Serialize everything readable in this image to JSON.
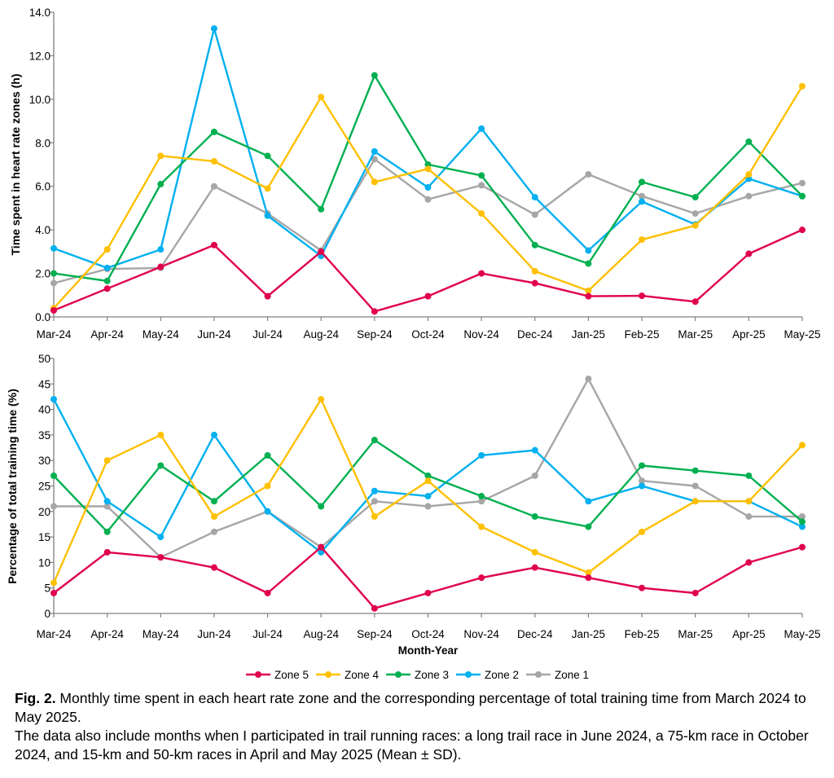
{
  "chart_data": [
    {
      "type": "line",
      "ylabel": "Time spent in heart rate zones (h)",
      "xlabel": "",
      "ylim": [
        0,
        14
      ],
      "yticks": [
        "0.0",
        "2.0",
        "4.0",
        "6.0",
        "8.0",
        "10.0",
        "12.0",
        "14.0"
      ],
      "categories": [
        "Mar-24",
        "Apr-24",
        "May-24",
        "Jun-24",
        "Jul-24",
        "Aug-24",
        "Sep-24",
        "Oct-24",
        "Nov-24",
        "Dec-24",
        "Jan-25",
        "Feb-25",
        "Mar-25",
        "Apr-25",
        "May-25"
      ],
      "series": [
        {
          "name": "Zone 1",
          "color": "#A6A6A6",
          "values": [
            1.55,
            2.2,
            2.25,
            6.0,
            4.75,
            3.05,
            7.25,
            5.4,
            6.05,
            4.7,
            6.55,
            5.55,
            4.75,
            5.55,
            6.15
          ]
        },
        {
          "name": "Zone 2",
          "color": "#00B0F0",
          "values": [
            3.15,
            2.25,
            3.1,
            13.25,
            4.65,
            2.8,
            7.6,
            5.95,
            8.65,
            5.5,
            3.05,
            5.3,
            4.25,
            6.35,
            5.55
          ]
        },
        {
          "name": "Zone 3",
          "color": "#00B050",
          "values": [
            2.0,
            1.65,
            6.1,
            8.5,
            7.4,
            4.95,
            11.1,
            7.0,
            6.5,
            3.3,
            2.45,
            6.2,
            5.5,
            8.05,
            5.55
          ]
        },
        {
          "name": "Zone 4",
          "color": "#FFC000",
          "values": [
            0.4,
            3.1,
            7.4,
            7.15,
            5.9,
            10.1,
            6.2,
            6.8,
            4.75,
            2.1,
            1.2,
            3.55,
            4.2,
            6.55,
            10.6
          ]
        },
        {
          "name": "Zone 5",
          "color": "#E0004D",
          "values": [
            0.3,
            1.3,
            2.3,
            3.3,
            0.95,
            3.0,
            0.25,
            0.95,
            2.0,
            1.55,
            0.95,
            0.97,
            0.7,
            2.9,
            4.0
          ]
        }
      ]
    },
    {
      "type": "line",
      "ylabel": "Percentage of total training time (%)",
      "xlabel": "Month-Year",
      "ylim": [
        0,
        50
      ],
      "yticks": [
        "0",
        "5",
        "10",
        "15",
        "20",
        "25",
        "30",
        "35",
        "40",
        "45",
        "50"
      ],
      "categories": [
        "Mar-24",
        "Apr-24",
        "May-24",
        "Jun-24",
        "Jul-24",
        "Aug-24",
        "Sep-24",
        "Oct-24",
        "Nov-24",
        "Dec-24",
        "Jan-25",
        "Feb-25",
        "Mar-25",
        "Apr-25",
        "May-25"
      ],
      "series": [
        {
          "name": "Zone 1",
          "color": "#A6A6A6",
          "values": [
            21,
            21,
            11,
            16,
            20,
            13,
            22,
            21,
            22,
            27,
            46,
            26,
            25,
            19,
            19
          ]
        },
        {
          "name": "Zone 2",
          "color": "#00B0F0",
          "values": [
            42,
            22,
            15,
            35,
            20,
            12,
            24,
            23,
            31,
            32,
            22,
            25,
            22,
            22,
            17
          ]
        },
        {
          "name": "Zone 3",
          "color": "#00B050",
          "values": [
            27,
            16,
            29,
            22,
            31,
            21,
            34,
            27,
            23,
            19,
            17,
            29,
            28,
            27,
            18
          ]
        },
        {
          "name": "Zone 4",
          "color": "#FFC000",
          "values": [
            6,
            30,
            35,
            19,
            25,
            42,
            19,
            26,
            17,
            12,
            8,
            16,
            22,
            22,
            33
          ]
        },
        {
          "name": "Zone 5",
          "color": "#E0004D",
          "values": [
            4,
            12,
            11,
            9,
            4,
            13,
            1,
            4,
            7,
            9,
            7,
            5,
            4,
            10,
            13
          ]
        }
      ]
    }
  ],
  "legend": {
    "placement": "bottom-center",
    "items": [
      {
        "label": "Zone 5",
        "color": "#E0004D"
      },
      {
        "label": "Zone 4",
        "color": "#FFC000"
      },
      {
        "label": "Zone 3",
        "color": "#00B050"
      },
      {
        "label": "Zone 2",
        "color": "#00B0F0"
      },
      {
        "label": "Zone 1",
        "color": "#A6A6A6"
      }
    ]
  },
  "caption": {
    "label": "Fig. 2.",
    "text1": " Monthly time spent in each heart rate zone and the corresponding percentage of total training time from March 2024 to May 2025.",
    "text2": "The data also include months when I participated in trail running races: a long trail race in June 2024, a 75-km race in October 2024, and 15-km and 50-km races in April and May 2025 (Mean ± SD)."
  }
}
